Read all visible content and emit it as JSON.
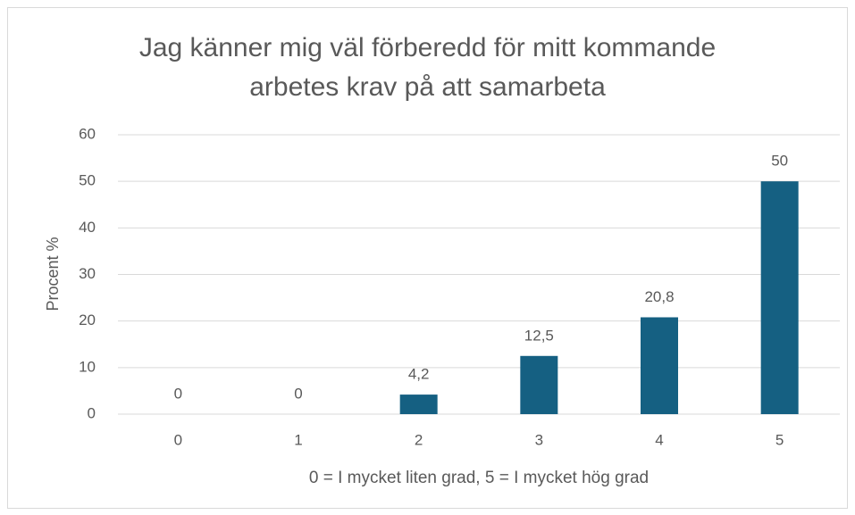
{
  "chart_data": {
    "type": "bar",
    "title": "Jag känner mig väl förberedd för mitt kommande\narbetes krav på att samarbeta",
    "x_label": "0 = I mycket liten grad, 5 = I mycket hög grad",
    "y_label": "Procent %",
    "categories": [
      "0",
      "1",
      "2",
      "3",
      "4",
      "5"
    ],
    "values": [
      0,
      0,
      4.2,
      12.5,
      20.8,
      50
    ],
    "value_labels": [
      "0",
      "0",
      "4,2",
      "12,5",
      "20,8",
      "50"
    ],
    "color": "#156082",
    "ylim": [
      0,
      60
    ],
    "yticks": [
      0,
      10,
      20,
      30,
      40,
      50,
      60
    ],
    "grid": true
  }
}
